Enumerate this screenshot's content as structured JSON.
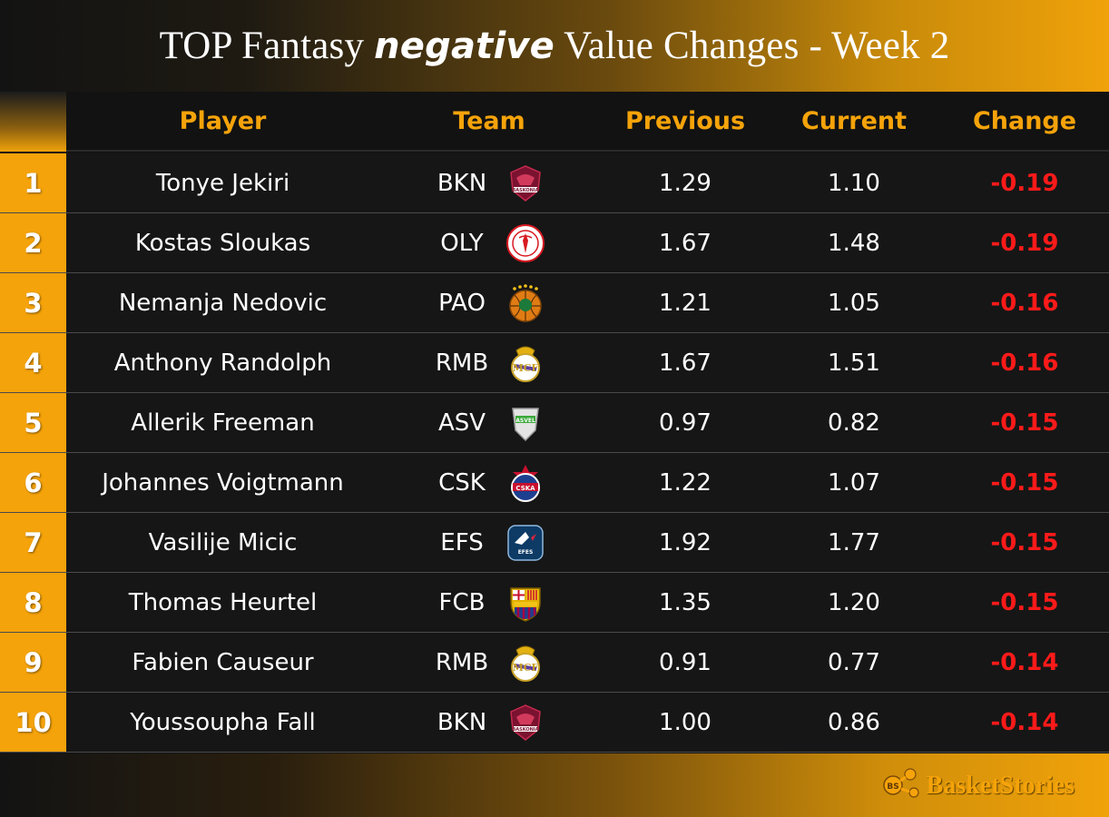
{
  "title": {
    "prefix": "TOP Fantasy ",
    "emphasis": "negative",
    "suffix": " Value Changes - Week 2"
  },
  "columns": {
    "player": "Player",
    "team": "Team",
    "previous": "Previous",
    "current": "Current",
    "change": "Change"
  },
  "rows": [
    {
      "rank": "1",
      "player": "Tonye Jekiri",
      "team": "BKN",
      "logo": "baskonia-logo-icon",
      "previous": "1.29",
      "current": "1.10",
      "change": "-0.19"
    },
    {
      "rank": "2",
      "player": "Kostas Sloukas",
      "team": "OLY",
      "logo": "olympiacos-logo-icon",
      "previous": "1.67",
      "current": "1.48",
      "change": "-0.19"
    },
    {
      "rank": "3",
      "player": "Nemanja Nedovic",
      "team": "PAO",
      "logo": "panathinaikos-logo-icon",
      "previous": "1.21",
      "current": "1.05",
      "change": "-0.16"
    },
    {
      "rank": "4",
      "player": "Anthony Randolph",
      "team": "RMB",
      "logo": "real-madrid-logo-icon",
      "previous": "1.67",
      "current": "1.51",
      "change": "-0.16"
    },
    {
      "rank": "5",
      "player": "Allerik Freeman",
      "team": "ASV",
      "logo": "asvel-logo-icon",
      "previous": "0.97",
      "current": "0.82",
      "change": "-0.15"
    },
    {
      "rank": "6",
      "player": "Johannes Voigtmann",
      "team": "CSK",
      "logo": "cska-logo-icon",
      "previous": "1.22",
      "current": "1.07",
      "change": "-0.15"
    },
    {
      "rank": "7",
      "player": "Vasilije Micic",
      "team": "EFS",
      "logo": "efes-logo-icon",
      "previous": "1.92",
      "current": "1.77",
      "change": "-0.15"
    },
    {
      "rank": "8",
      "player": "Thomas Heurtel",
      "team": "FCB",
      "logo": "barcelona-logo-icon",
      "previous": "1.35",
      "current": "1.20",
      "change": "-0.15"
    },
    {
      "rank": "9",
      "player": "Fabien Causeur",
      "team": "RMB",
      "logo": "real-madrid-logo-icon",
      "previous": "0.91",
      "current": "0.77",
      "change": "-0.14"
    },
    {
      "rank": "10",
      "player": "Youssoupha Fall",
      "team": "BKN",
      "logo": "baskonia-logo-icon",
      "previous": "1.00",
      "current": "0.86",
      "change": "-0.14"
    }
  ],
  "brand": {
    "name": "BasketStories",
    "logo": "basketstories-logo-icon"
  },
  "colors": {
    "accent": "#f5a30a",
    "negative": "#ff1a1a",
    "background": "#141414"
  }
}
